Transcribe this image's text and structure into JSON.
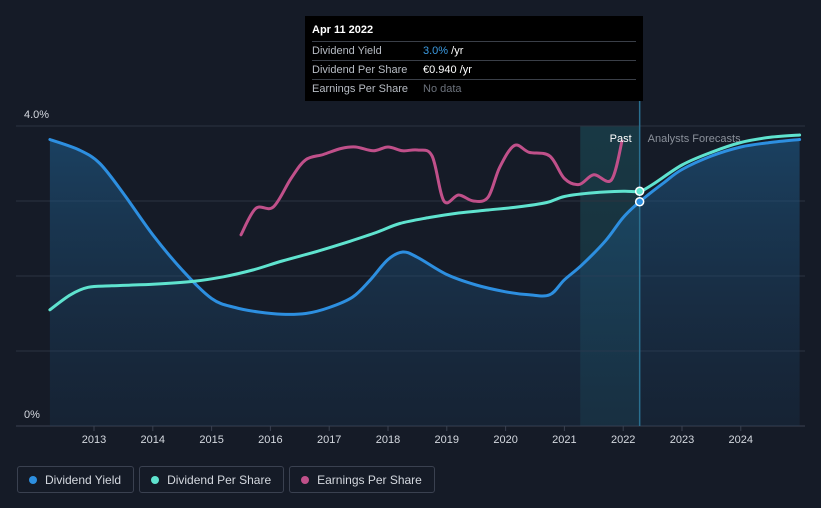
{
  "tooltip": {
    "date": "Apr 11 2022",
    "rows": [
      {
        "name": "Dividend Yield",
        "value": "3.0%",
        "unit": " /yr"
      },
      {
        "name": "Dividend Per Share",
        "value": "€0.940",
        "unit": " /yr"
      },
      {
        "name": "Earnings Per Share",
        "value": "No data",
        "unit": ""
      }
    ]
  },
  "labels": {
    "past": "Past",
    "forecast": "Analysts Forecasts"
  },
  "legend": [
    {
      "label": "Dividend Yield",
      "color": "#2d8fe0"
    },
    {
      "label": "Dividend Per Share",
      "color": "#5fe3cf"
    },
    {
      "label": "Earnings Per Share",
      "color": "#c0508a"
    }
  ],
  "chart_data": {
    "type": "line",
    "x_ticks": [
      "2013",
      "2014",
      "2015",
      "2016",
      "2017",
      "2018",
      "2019",
      "2020",
      "2021",
      "2022",
      "2023",
      "2024"
    ],
    "y_tick_labels": [
      "4.0%",
      "0%"
    ],
    "ylim": [
      0,
      4.0
    ],
    "xlim": [
      2012.2,
      2025.0
    ],
    "hover_x": 2022.28,
    "past_band": [
      2021.27,
      2022.28
    ],
    "series": [
      {
        "name": "Dividend Yield",
        "color": "#2d8fe0",
        "fill": true,
        "points": [
          [
            2012.25,
            3.82
          ],
          [
            2012.75,
            3.68
          ],
          [
            2013.1,
            3.5
          ],
          [
            2013.5,
            3.1
          ],
          [
            2014.0,
            2.55
          ],
          [
            2014.5,
            2.08
          ],
          [
            2015.0,
            1.7
          ],
          [
            2015.4,
            1.58
          ],
          [
            2015.8,
            1.52
          ],
          [
            2016.2,
            1.49
          ],
          [
            2016.6,
            1.5
          ],
          [
            2017.0,
            1.58
          ],
          [
            2017.4,
            1.72
          ],
          [
            2017.7,
            1.95
          ],
          [
            2018.0,
            2.22
          ],
          [
            2018.25,
            2.32
          ],
          [
            2018.5,
            2.25
          ],
          [
            2019.0,
            2.02
          ],
          [
            2019.5,
            1.88
          ],
          [
            2020.0,
            1.79
          ],
          [
            2020.4,
            1.75
          ],
          [
            2020.75,
            1.75
          ],
          [
            2021.0,
            1.95
          ],
          [
            2021.3,
            2.15
          ],
          [
            2021.7,
            2.47
          ],
          [
            2022.0,
            2.78
          ],
          [
            2022.28,
            2.99
          ],
          [
            2022.7,
            3.25
          ],
          [
            2023.0,
            3.42
          ],
          [
            2023.5,
            3.6
          ],
          [
            2024.0,
            3.72
          ],
          [
            2024.5,
            3.78
          ],
          [
            2025.0,
            3.82
          ]
        ]
      },
      {
        "name": "Dividend Per Share",
        "color": "#5fe3cf",
        "fill": false,
        "points": [
          [
            2012.25,
            1.55
          ],
          [
            2012.6,
            1.75
          ],
          [
            2012.9,
            1.85
          ],
          [
            2013.3,
            1.87
          ],
          [
            2014.0,
            1.89
          ],
          [
            2014.7,
            1.93
          ],
          [
            2015.2,
            1.99
          ],
          [
            2015.7,
            2.08
          ],
          [
            2016.2,
            2.2
          ],
          [
            2016.8,
            2.33
          ],
          [
            2017.3,
            2.45
          ],
          [
            2017.8,
            2.58
          ],
          [
            2018.2,
            2.7
          ],
          [
            2018.7,
            2.78
          ],
          [
            2019.2,
            2.84
          ],
          [
            2019.7,
            2.88
          ],
          [
            2020.2,
            2.92
          ],
          [
            2020.7,
            2.98
          ],
          [
            2021.0,
            3.06
          ],
          [
            2021.5,
            3.11
          ],
          [
            2022.0,
            3.13
          ],
          [
            2022.28,
            3.13
          ],
          [
            2022.5,
            3.22
          ],
          [
            2023.0,
            3.48
          ],
          [
            2023.5,
            3.65
          ],
          [
            2024.0,
            3.78
          ],
          [
            2024.5,
            3.85
          ],
          [
            2025.0,
            3.88
          ]
        ]
      },
      {
        "name": "Earnings Per Share",
        "color": "#c0508a",
        "fill": false,
        "points": [
          [
            2015.5,
            2.55
          ],
          [
            2015.75,
            2.9
          ],
          [
            2016.05,
            2.92
          ],
          [
            2016.35,
            3.3
          ],
          [
            2016.6,
            3.55
          ],
          [
            2016.9,
            3.62
          ],
          [
            2017.2,
            3.7
          ],
          [
            2017.45,
            3.72
          ],
          [
            2017.75,
            3.67
          ],
          [
            2018.0,
            3.72
          ],
          [
            2018.25,
            3.67
          ],
          [
            2018.5,
            3.68
          ],
          [
            2018.75,
            3.6
          ],
          [
            2018.95,
            3.0
          ],
          [
            2019.2,
            3.08
          ],
          [
            2019.45,
            3.0
          ],
          [
            2019.7,
            3.05
          ],
          [
            2019.9,
            3.45
          ],
          [
            2020.15,
            3.74
          ],
          [
            2020.4,
            3.65
          ],
          [
            2020.75,
            3.6
          ],
          [
            2021.0,
            3.3
          ],
          [
            2021.25,
            3.22
          ],
          [
            2021.5,
            3.35
          ],
          [
            2021.8,
            3.28
          ],
          [
            2021.98,
            3.8
          ]
        ]
      }
    ]
  }
}
